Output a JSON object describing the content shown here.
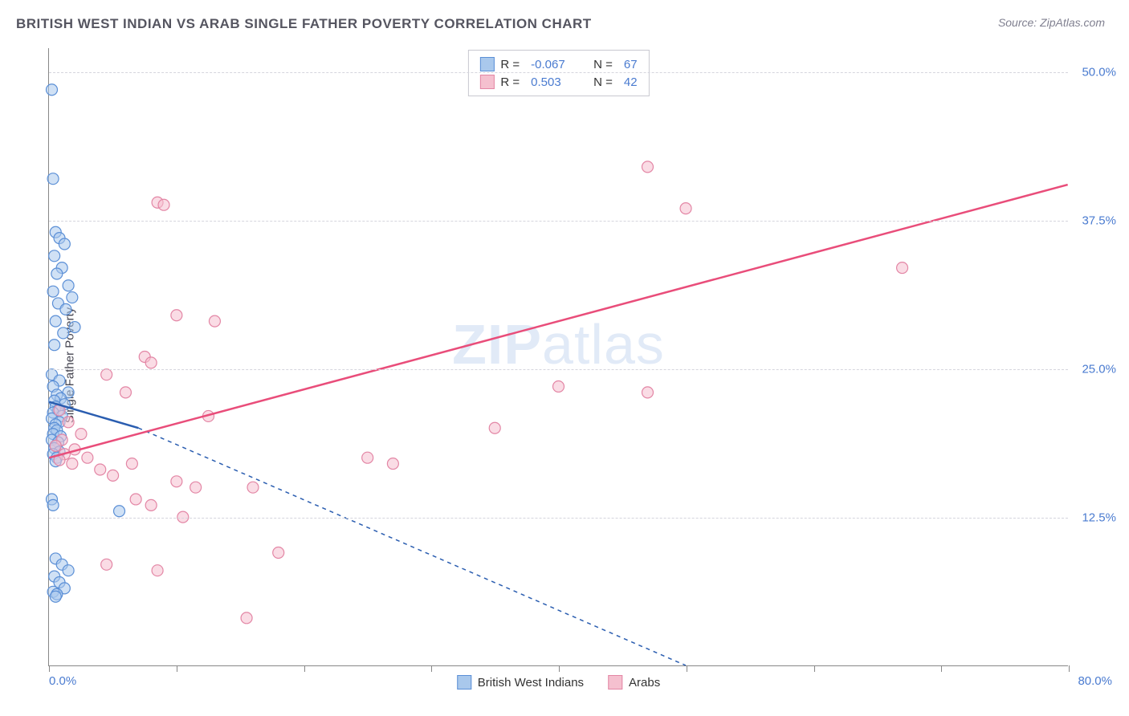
{
  "title": "BRITISH WEST INDIAN VS ARAB SINGLE FATHER POVERTY CORRELATION CHART",
  "source": "Source: ZipAtlas.com",
  "y_axis_label": "Single Father Poverty",
  "watermark": "ZIPatlas",
  "chart": {
    "type": "scatter",
    "background_color": "#ffffff",
    "grid_color": "#d5d5dd",
    "axis_color": "#888888",
    "xlim": [
      0,
      80
    ],
    "ylim": [
      0,
      52
    ],
    "x_min_label": "0.0%",
    "x_max_label": "80.0%",
    "y_ticks": [
      {
        "value": 12.5,
        "label": "12.5%"
      },
      {
        "value": 25.0,
        "label": "25.0%"
      },
      {
        "value": 37.5,
        "label": "37.5%"
      },
      {
        "value": 50.0,
        "label": "50.0%"
      }
    ],
    "x_tick_values": [
      0,
      10,
      20,
      30,
      40,
      50,
      60,
      70,
      80
    ],
    "marker_radius": 7,
    "marker_opacity": 0.55,
    "label_color": "#4a7bd0"
  },
  "series": [
    {
      "name": "British West Indians",
      "color_fill": "#a9c8ec",
      "color_stroke": "#5b8fd6",
      "line_color": "#2a5db0",
      "line_dash_extended": "5,5",
      "R": "-0.067",
      "N": "67",
      "trend": {
        "x1": 0,
        "y1": 22.2,
        "x2": 7,
        "y2": 20.0,
        "x2_ext": 50,
        "y2_ext": 0
      },
      "points": [
        [
          0.2,
          48.5
        ],
        [
          0.3,
          41.0
        ],
        [
          0.5,
          36.5
        ],
        [
          0.8,
          36.0
        ],
        [
          1.2,
          35.5
        ],
        [
          0.4,
          34.5
        ],
        [
          1.0,
          33.5
        ],
        [
          0.6,
          33.0
        ],
        [
          1.5,
          32.0
        ],
        [
          0.3,
          31.5
        ],
        [
          1.8,
          31.0
        ],
        [
          0.7,
          30.5
        ],
        [
          1.3,
          30.0
        ],
        [
          0.5,
          29.0
        ],
        [
          2.0,
          28.5
        ],
        [
          1.1,
          28.0
        ],
        [
          0.4,
          27.0
        ],
        [
          0.2,
          24.5
        ],
        [
          0.8,
          24.0
        ],
        [
          0.3,
          23.5
        ],
        [
          1.5,
          23.0
        ],
        [
          0.6,
          22.8
        ],
        [
          0.9,
          22.5
        ],
        [
          0.4,
          22.3
        ],
        [
          1.2,
          22.0
        ],
        [
          0.5,
          21.8
        ],
        [
          0.7,
          21.5
        ],
        [
          0.3,
          21.3
        ],
        [
          1.0,
          21.0
        ],
        [
          0.2,
          20.8
        ],
        [
          0.8,
          20.5
        ],
        [
          0.5,
          20.3
        ],
        [
          0.4,
          20.0
        ],
        [
          0.6,
          19.8
        ],
        [
          0.3,
          19.5
        ],
        [
          0.9,
          19.3
        ],
        [
          0.2,
          19.0
        ],
        [
          0.7,
          18.8
        ],
        [
          0.5,
          18.5
        ],
        [
          0.4,
          18.3
        ],
        [
          0.8,
          18.0
        ],
        [
          0.3,
          17.8
        ],
        [
          0.6,
          17.5
        ],
        [
          0.5,
          17.2
        ],
        [
          0.2,
          14.0
        ],
        [
          5.5,
          13.0
        ],
        [
          0.3,
          13.5
        ],
        [
          0.5,
          9.0
        ],
        [
          1.0,
          8.5
        ],
        [
          1.5,
          8.0
        ],
        [
          0.4,
          7.5
        ],
        [
          0.8,
          7.0
        ],
        [
          1.2,
          6.5
        ],
        [
          0.3,
          6.2
        ],
        [
          0.6,
          6.0
        ],
        [
          0.5,
          5.8
        ]
      ]
    },
    {
      "name": "Arabs",
      "color_fill": "#f5c0cf",
      "color_stroke": "#e386a5",
      "line_color": "#e94d7a",
      "R": "0.503",
      "N": "42",
      "trend": {
        "x1": 0,
        "y1": 17.5,
        "x2": 80,
        "y2": 40.5
      },
      "points": [
        [
          47.0,
          42.0
        ],
        [
          50.0,
          38.5
        ],
        [
          67.0,
          33.5
        ],
        [
          8.5,
          39.0
        ],
        [
          9.0,
          38.8
        ],
        [
          10.0,
          29.5
        ],
        [
          13.0,
          29.0
        ],
        [
          7.5,
          26.0
        ],
        [
          8.0,
          25.5
        ],
        [
          4.5,
          24.5
        ],
        [
          6.0,
          23.0
        ],
        [
          40.0,
          23.5
        ],
        [
          47.0,
          23.0
        ],
        [
          35.0,
          20.0
        ],
        [
          12.5,
          21.0
        ],
        [
          0.8,
          21.5
        ],
        [
          1.5,
          20.5
        ],
        [
          2.5,
          19.5
        ],
        [
          1.0,
          19.0
        ],
        [
          0.5,
          18.5
        ],
        [
          2.0,
          18.2
        ],
        [
          1.2,
          17.8
        ],
        [
          3.0,
          17.5
        ],
        [
          0.8,
          17.3
        ],
        [
          1.8,
          17.0
        ],
        [
          6.5,
          17.0
        ],
        [
          4.0,
          16.5
        ],
        [
          25.0,
          17.5
        ],
        [
          27.0,
          17.0
        ],
        [
          10.0,
          15.5
        ],
        [
          11.5,
          15.0
        ],
        [
          16.0,
          15.0
        ],
        [
          8.0,
          13.5
        ],
        [
          10.5,
          12.5
        ],
        [
          18.0,
          9.5
        ],
        [
          8.5,
          8.0
        ],
        [
          4.5,
          8.5
        ],
        [
          15.5,
          4.0
        ],
        [
          5.0,
          16.0
        ],
        [
          6.8,
          14.0
        ]
      ]
    }
  ]
}
